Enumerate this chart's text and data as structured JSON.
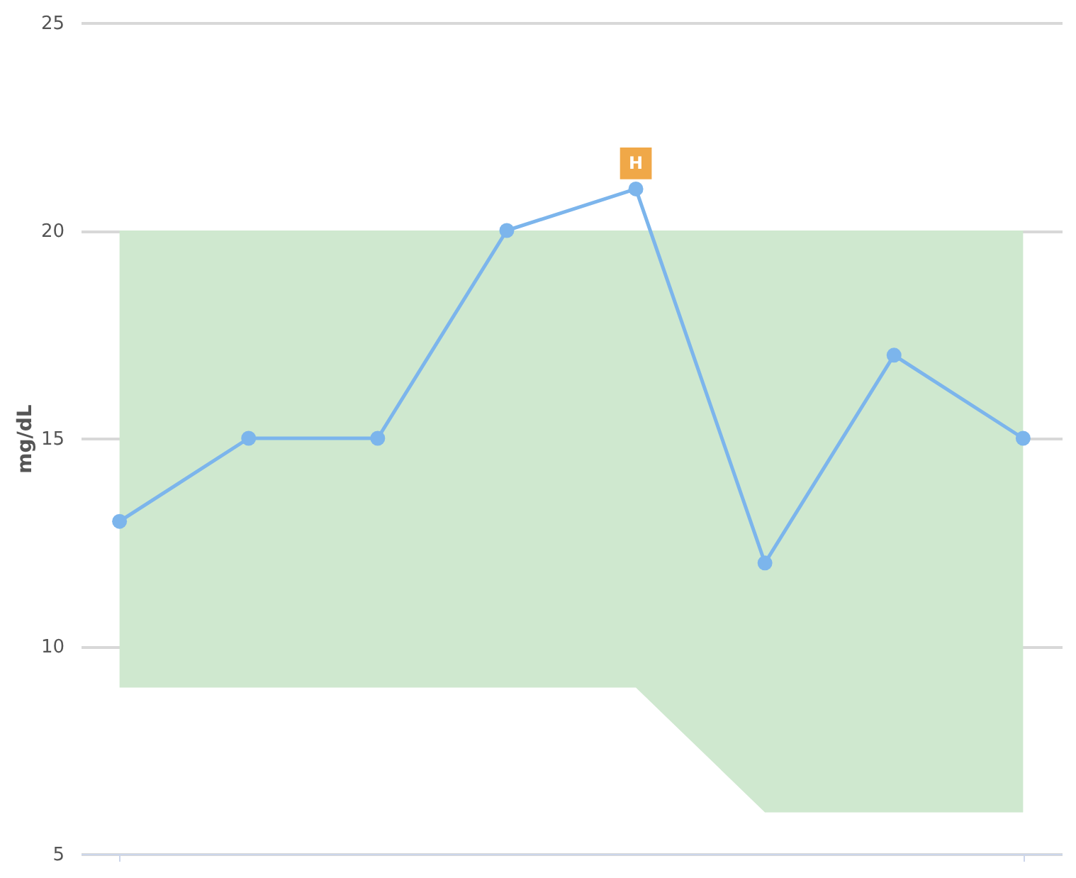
{
  "chart_data": {
    "type": "line",
    "ylabel": "mg/dL",
    "categories": [
      null,
      null,
      null,
      null,
      null,
      null,
      null,
      null
    ],
    "series": [
      {
        "color": "#7cb5ec",
        "values": [
          13,
          15,
          15,
          20,
          21,
          12,
          17,
          15
        ],
        "lower": [
          9,
          9,
          9,
          9,
          9,
          6,
          6,
          6
        ],
        "upper": [
          20,
          20,
          20,
          20,
          20,
          20,
          20,
          20
        ]
      }
    ],
    "annotations": [
      {
        "text": "H",
        "y": 21
      }
    ],
    "ylim": [
      5,
      25
    ],
    "yticks": [
      5,
      10,
      15,
      20,
      25
    ],
    "grid": "y",
    "marker": "circle",
    "line_style": "solid",
    "tick_labels": "y"
  }
}
